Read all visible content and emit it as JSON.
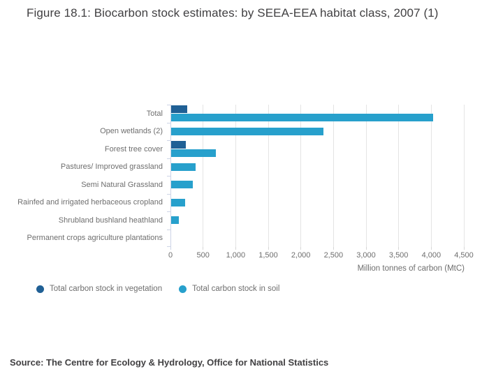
{
  "title": "Figure 18.1: Biocarbon stock estimates: by SEEA-EEA habitat class, 2007 (1)",
  "source": "Source: The Centre for Ecology & Hydrology, Office for National Statistics",
  "colors": {
    "vegetation": "#206095",
    "soil": "#27a0cc",
    "gridline": "#e4e4e4",
    "axis": "#cdd4e6",
    "text_gray": "#6e6e6e",
    "title_gray": "#414042"
  },
  "legend": [
    {
      "label": "Total carbon stock in vegetation",
      "color": "#206095"
    },
    {
      "label": "Total carbon stock in soil",
      "color": "#27a0cc"
    }
  ],
  "chart_data": {
    "type": "bar",
    "orientation": "horizontal",
    "title": "Figure 18.1: Biocarbon stock estimates: by SEEA-EEA habitat class, 2007 (1)",
    "categories": [
      "Total",
      "Open wetlands (2)",
      "Forest tree cover",
      "Pastures/ Improved grassland",
      "Semi Natural Grassland",
      "Rainfed and irrigated herbaceous cropland",
      "Shrubland bushland heathland",
      "Permanent crops agriculture plantations"
    ],
    "series": [
      {
        "name": "Total carbon stock in vegetation",
        "color": "#206095",
        "values": [
          250,
          0,
          230,
          0,
          0,
          0,
          0,
          0
        ]
      },
      {
        "name": "Total carbon stock in soil",
        "color": "#27a0cc",
        "values": [
          4020,
          2340,
          685,
          375,
          330,
          210,
          120,
          0
        ]
      }
    ],
    "xlabel": "Million tonnes of carbon (MtC)",
    "ylabel": "",
    "xlim": [
      0,
      4500
    ],
    "xticks": [
      0,
      500,
      1000,
      1500,
      2000,
      2500,
      3000,
      3500,
      4000,
      4500
    ],
    "xtick_labels": [
      "0",
      "500",
      "1,000",
      "1,500",
      "2,000",
      "2,500",
      "3,000",
      "3,500",
      "4,000",
      "4,500"
    ],
    "grid": true,
    "legend_position": "bottom-left"
  }
}
